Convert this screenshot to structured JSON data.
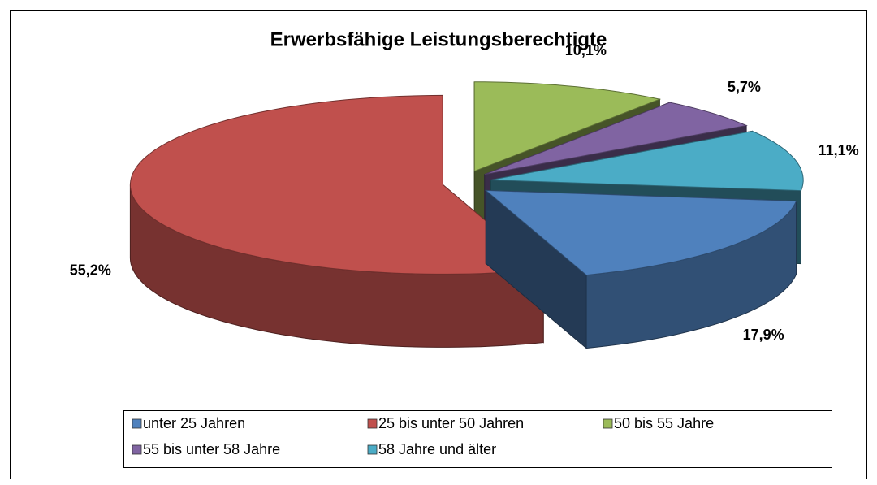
{
  "chart_data": {
    "type": "pie",
    "title": "Erwerbsfähige Leistungsberechtigte",
    "categories": [
      "unter 25 Jahren",
      "25 bis unter 50 Jahren",
      "50 bis 55 Jahre",
      "55 bis unter 58 Jahre",
      "58 Jahre und älter"
    ],
    "values": [
      17.9,
      55.2,
      10.1,
      5.7,
      11.1
    ],
    "value_labels": [
      "17,9%",
      "55,2%",
      "10,1%",
      "5,7%",
      "11,1%"
    ],
    "colors": [
      "#4f81bd",
      "#c0504d",
      "#9bbb59",
      "#8064a2",
      "#4bacc6"
    ]
  }
}
